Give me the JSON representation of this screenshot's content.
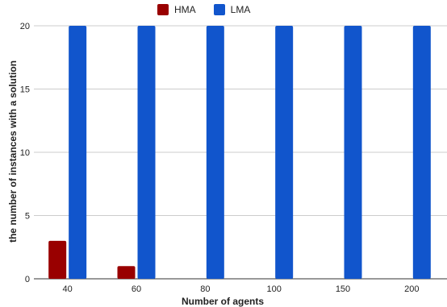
{
  "chart_data": {
    "type": "bar",
    "title": "",
    "xlabel": "Number of agents",
    "ylabel": "the number of instances with a solution",
    "categories": [
      "40",
      "60",
      "80",
      "100",
      "150",
      "200"
    ],
    "series": [
      {
        "name": "HMA",
        "color": "#990000",
        "values": [
          3,
          1,
          0,
          0,
          0,
          0
        ]
      },
      {
        "name": "LMA",
        "color": "#1155cc",
        "values": [
          20,
          20,
          20,
          20,
          20,
          20
        ]
      }
    ],
    "ylim": [
      0,
      20
    ],
    "yticks": [
      0,
      5,
      10,
      15,
      20
    ],
    "grid": true,
    "legend_position": "top-center"
  }
}
